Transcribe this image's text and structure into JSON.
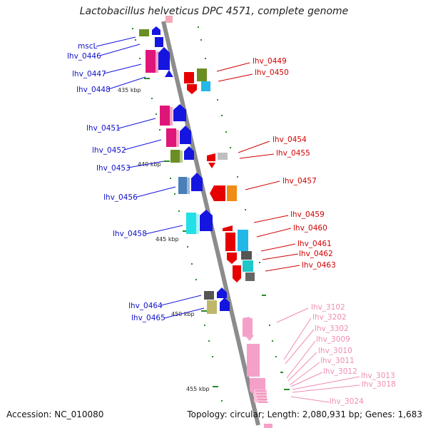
{
  "title": "Lactobacillus helveticus DPC 4571, complete genome",
  "footer": {
    "accession": "Accession: NC_010080",
    "topology": "Topology: circular; Length: 2,080,931 bp; Genes: 1,683"
  },
  "colors": {
    "backbone": "#8c8c8c",
    "left_labels": "#1010c8",
    "right_labels": "#d00000",
    "far_labels": "#f08cb4",
    "tick_marks": "#2a8a2a"
  },
  "scale_labels": [
    "435 kbp",
    "440 kbp",
    "445 kbp",
    "450 kbp",
    "455 kbp"
  ],
  "left_genes": [
    "mscL",
    "lhv_0446",
    "lhv_0447",
    "lhv_0448",
    "lhv_0451",
    "lhv_0452",
    "lhv_0453",
    "lhv_0456",
    "lhv_0458",
    "lhv_0464",
    "lhv_0465"
  ],
  "right_genes": [
    "lhv_0449",
    "lhv_0450",
    "lhv_0454",
    "lhv_0455",
    "lhv_0457",
    "lhv_0459",
    "lhv_0460",
    "lhv_0461",
    "lhv_0462",
    "lhv_0463"
  ],
  "far_genes": [
    "lhv_3102",
    "lhv_3202",
    "lhv_3302",
    "lhv_3009",
    "lhv_3010",
    "lhv_3011",
    "lhv_3012",
    "lhv_3013",
    "lhv_3018",
    "lhv_3024"
  ]
}
